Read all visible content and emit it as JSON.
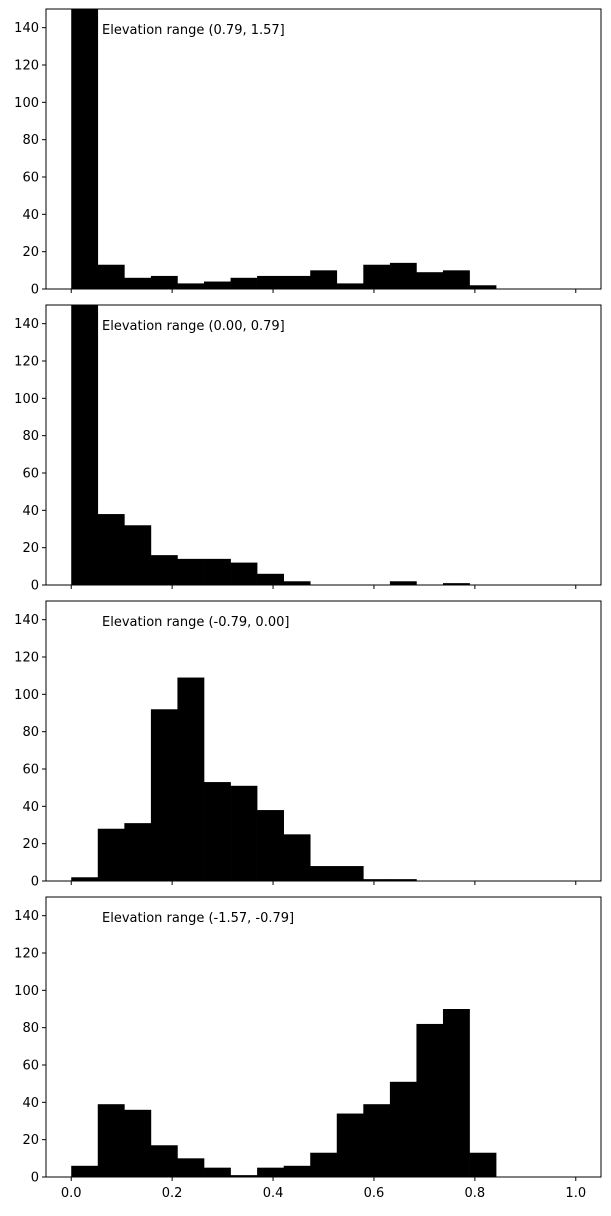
{
  "chart_data": [
    {
      "type": "bar",
      "title": "",
      "annotation": "Elevation range (0.79, 1.57]",
      "xlim": [
        -0.05,
        1.05
      ],
      "ylim": [
        0,
        150
      ],
      "xticks": [
        0.0,
        0.2,
        0.4,
        0.6,
        0.8,
        1.0
      ],
      "xtick_labels": [],
      "yticks": [
        0,
        20,
        40,
        60,
        80,
        100,
        120,
        140
      ],
      "ytick_labels": [
        "0",
        "20",
        "40",
        "60",
        "80",
        "100",
        "120",
        "140"
      ],
      "bin_edges": [
        0.0,
        0.0526,
        0.1053,
        0.1579,
        0.2105,
        0.2632,
        0.3158,
        0.3684,
        0.4211,
        0.4737,
        0.5263,
        0.5789,
        0.6316,
        0.6842,
        0.7368,
        0.7895,
        0.8421,
        0.8947,
        0.9474,
        1.0
      ],
      "values": [
        150,
        13,
        6,
        7,
        3,
        4,
        6,
        7,
        7,
        10,
        3,
        13,
        14,
        9,
        10,
        2,
        0,
        0,
        0
      ],
      "color": "#000000"
    },
    {
      "type": "bar",
      "title": "",
      "annotation": "Elevation range (0.00, 0.79]",
      "xlim": [
        -0.05,
        1.05
      ],
      "ylim": [
        0,
        150
      ],
      "xticks": [
        0.0,
        0.2,
        0.4,
        0.6,
        0.8,
        1.0
      ],
      "xtick_labels": [],
      "yticks": [
        0,
        20,
        40,
        60,
        80,
        100,
        120,
        140
      ],
      "ytick_labels": [
        "0",
        "20",
        "40",
        "60",
        "80",
        "100",
        "120",
        "140"
      ],
      "bin_edges": [
        0.0,
        0.0526,
        0.1053,
        0.1579,
        0.2105,
        0.2632,
        0.3158,
        0.3684,
        0.4211,
        0.4737,
        0.5263,
        0.5789,
        0.6316,
        0.6842,
        0.7368,
        0.7895,
        0.8421,
        0.8947,
        0.9474,
        1.0
      ],
      "values": [
        150,
        38,
        32,
        16,
        14,
        14,
        12,
        6,
        2,
        0,
        0,
        0,
        2,
        0,
        1,
        0,
        0,
        0,
        0
      ],
      "color": "#000000"
    },
    {
      "type": "bar",
      "title": "",
      "annotation": "Elevation range (-0.79, 0.00]",
      "xlim": [
        -0.05,
        1.05
      ],
      "ylim": [
        0,
        150
      ],
      "xticks": [
        0.0,
        0.2,
        0.4,
        0.6,
        0.8,
        1.0
      ],
      "xtick_labels": [],
      "yticks": [
        0,
        20,
        40,
        60,
        80,
        100,
        120,
        140
      ],
      "ytick_labels": [
        "0",
        "20",
        "40",
        "60",
        "80",
        "100",
        "120",
        "140"
      ],
      "bin_edges": [
        0.0,
        0.0526,
        0.1053,
        0.1579,
        0.2105,
        0.2632,
        0.3158,
        0.3684,
        0.4211,
        0.4737,
        0.5263,
        0.5789,
        0.6316,
        0.6842,
        0.7368,
        0.7895,
        0.8421,
        0.8947,
        0.9474,
        1.0
      ],
      "values": [
        2,
        28,
        31,
        92,
        109,
        53,
        51,
        38,
        25,
        8,
        8,
        1,
        1,
        0,
        0,
        0,
        0,
        0,
        0
      ],
      "color": "#000000"
    },
    {
      "type": "bar",
      "title": "",
      "annotation": "Elevation range (-1.57, -0.79]",
      "xlim": [
        -0.05,
        1.05
      ],
      "ylim": [
        0,
        150
      ],
      "xticks": [
        0.0,
        0.2,
        0.4,
        0.6,
        0.8,
        1.0
      ],
      "xtick_labels": [
        "0.0",
        "0.2",
        "0.4",
        "0.6",
        "0.8",
        "1.0"
      ],
      "yticks": [
        0,
        20,
        40,
        60,
        80,
        100,
        120,
        140
      ],
      "ytick_labels": [
        "0",
        "20",
        "40",
        "60",
        "80",
        "100",
        "120",
        "140"
      ],
      "bin_edges": [
        0.0,
        0.0526,
        0.1053,
        0.1579,
        0.2105,
        0.2632,
        0.3158,
        0.3684,
        0.4211,
        0.4737,
        0.5263,
        0.5789,
        0.6316,
        0.6842,
        0.7368,
        0.7895,
        0.8421,
        0.8947,
        0.9474,
        1.0
      ],
      "values": [
        6,
        39,
        36,
        17,
        10,
        5,
        1,
        5,
        6,
        13,
        34,
        39,
        51,
        82,
        90,
        13,
        0,
        0,
        0
      ],
      "color": "#000000"
    }
  ]
}
